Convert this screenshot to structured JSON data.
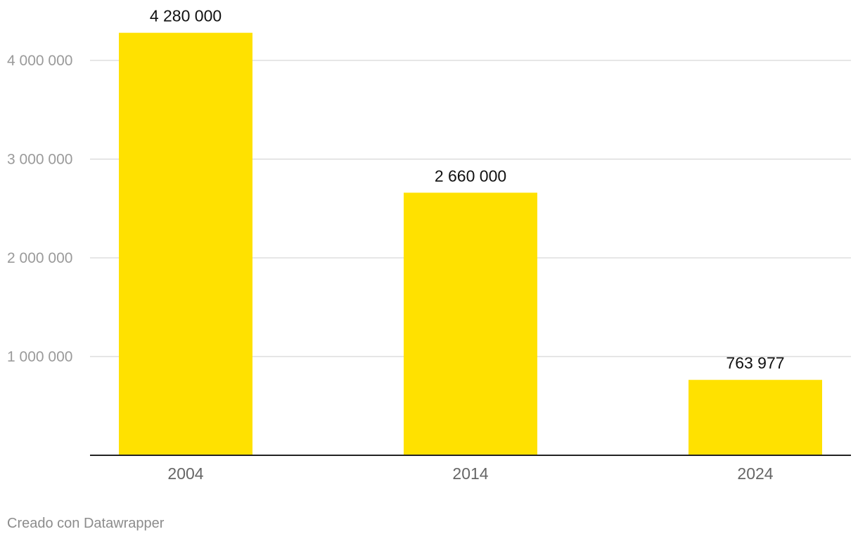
{
  "chart_data": {
    "type": "bar",
    "categories": [
      "2004",
      "2014",
      "2024"
    ],
    "values": [
      4280000,
      2660000,
      763977
    ],
    "value_labels": [
      "4 280 000",
      "2 660 000",
      "763 977"
    ],
    "ylim": [
      0,
      4400000
    ],
    "yticks": [
      1000000,
      2000000,
      3000000,
      4000000
    ],
    "ytick_labels": [
      "1 000 000",
      "2 000 000",
      "3 000 000",
      "4 000 000"
    ],
    "grid": true,
    "legend": "none",
    "bar_color": "#FFE100",
    "title": "",
    "xlabel": "",
    "ylabel": ""
  },
  "footer": {
    "credit": "Creado con Datawrapper"
  },
  "colors": {
    "grid": "#dddddd",
    "axis": "#222222",
    "tick_text": "#9a9a9a",
    "category_text": "#666666",
    "value_text": "#111111"
  }
}
